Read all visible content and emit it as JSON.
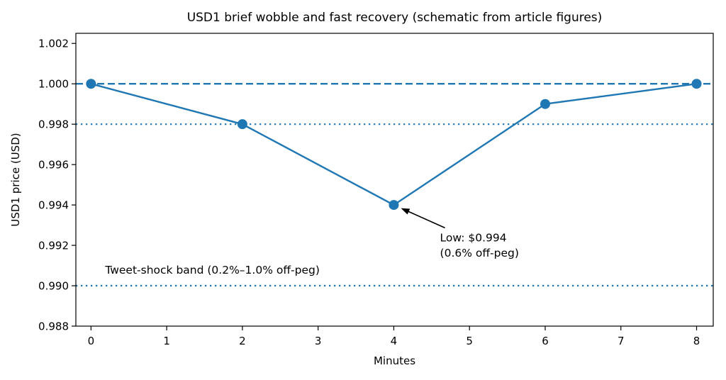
{
  "figure": {
    "background": "#ffffff",
    "frame_color": "#000000"
  },
  "chart_data": {
    "type": "line",
    "title": "USD1 brief wobble and fast recovery (schematic from article figures)",
    "xlabel": "Minutes",
    "ylabel": "USD1 price (USD)",
    "x": [
      0,
      2,
      4,
      6,
      8
    ],
    "y": [
      1.0,
      0.998,
      0.994,
      0.999,
      1.0
    ],
    "line_color": "#1f77b4",
    "marker": "circle",
    "grid": false,
    "legend": null,
    "xlim": [
      -0.2,
      8.22
    ],
    "ylim": [
      0.988,
      1.0025
    ],
    "x_tick_values": [
      0,
      1,
      2,
      3,
      4,
      5,
      6,
      7,
      8
    ],
    "x_tick_labels": [
      "0",
      "1",
      "2",
      "3",
      "4",
      "5",
      "6",
      "7",
      "8"
    ],
    "y_tick_values": [
      0.988,
      0.99,
      0.992,
      0.994,
      0.996,
      0.998,
      1.0,
      1.002
    ],
    "y_tick_labels": [
      "0.988",
      "0.990",
      "0.992",
      "0.994",
      "0.996",
      "0.998",
      "1.000",
      "1.002"
    ],
    "reference_lines": [
      {
        "name": "peg-line",
        "y": 1.0,
        "style": "dashed",
        "color": "#1f77b4"
      },
      {
        "name": "band-upper-line",
        "y": 0.998,
        "style": "dotted",
        "color": "#1f77b4"
      },
      {
        "name": "band-lower-line",
        "y": 0.99,
        "style": "dotted",
        "color": "#1f77b4"
      }
    ],
    "annotation": {
      "text_line1": "Low: $0.994",
      "text_line2": "(0.6% off-peg)",
      "point": {
        "x": 4,
        "y": 0.994
      },
      "text_xy": [
        4.61,
        0.9922
      ],
      "arrow_color": "#000000"
    },
    "band_label": {
      "text": "Tweet-shock band (0.2%–1.0% off-peg)",
      "x": 0.187,
      "y": 0.9906
    }
  }
}
